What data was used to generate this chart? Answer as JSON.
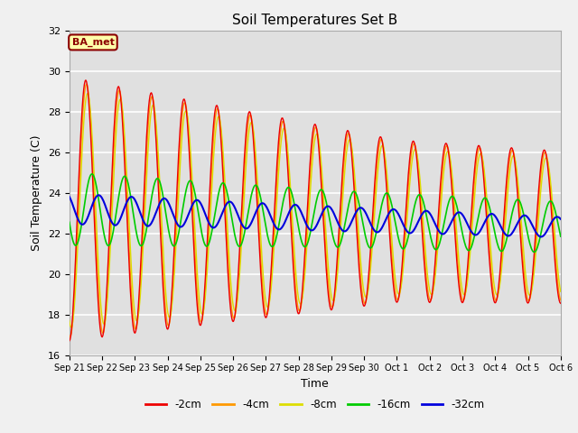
{
  "title": "Soil Temperatures Set B",
  "xlabel": "Time",
  "ylabel": "Soil Temperature (C)",
  "ylim": [
    16,
    32
  ],
  "annotation": "BA_met",
  "legend_labels": [
    "-2cm",
    "-4cm",
    "-8cm",
    "-16cm",
    "-32cm"
  ],
  "legend_colors": [
    "#ee0000",
    "#ff9900",
    "#dddd00",
    "#00cc00",
    "#0000dd"
  ],
  "xtick_labels": [
    "Sep 21",
    "Sep 22",
    "Sep 23",
    "Sep 24",
    "Sep 25",
    "Sep 26",
    "Sep 27",
    "Sep 28",
    "Sep 29",
    "Sep 30",
    "Oct 1",
    "Oct 2",
    "Oct 3",
    "Oct 4",
    "Oct 5",
    "Oct 6"
  ],
  "fig_bg": "#f0f0f0",
  "ax_bg": "#e0e0e0",
  "grid_color": "#ffffff",
  "n_days": 15,
  "points_per_day": 48
}
